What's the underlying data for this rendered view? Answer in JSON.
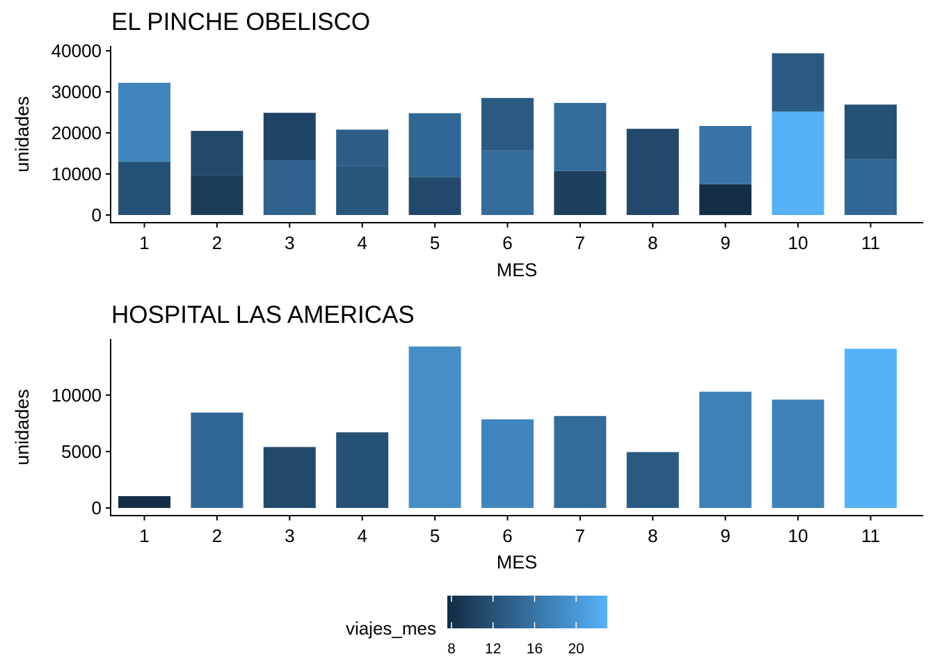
{
  "chart_data": [
    {
      "type": "bar",
      "stacked": true,
      "title": "EL PINCHE OBELISCO",
      "xlabel": "MES",
      "ylabel": "unidades",
      "categories": [
        1,
        2,
        3,
        4,
        5,
        6,
        7,
        8,
        9,
        10,
        11
      ],
      "ylim": [
        0,
        40000
      ],
      "yticks": [
        0,
        10000,
        20000,
        30000,
        40000
      ],
      "grid": false,
      "segments": [
        [
          {
            "value": 13000,
            "viajes_mes": 12
          },
          {
            "value": 19200,
            "viajes_mes": 18
          }
        ],
        [
          {
            "value": 9700,
            "viajes_mes": 9.5
          },
          {
            "value": 10800,
            "viajes_mes": 11
          }
        ],
        [
          {
            "value": 13400,
            "viajes_mes": 14
          },
          {
            "value": 11500,
            "viajes_mes": 10.5
          }
        ],
        [
          {
            "value": 12000,
            "viajes_mes": 12.5
          },
          {
            "value": 8800,
            "viajes_mes": 13.5
          }
        ],
        [
          {
            "value": 9200,
            "viajes_mes": 11
          },
          {
            "value": 15600,
            "viajes_mes": 14.5
          }
        ],
        [
          {
            "value": 15700,
            "viajes_mes": 15
          },
          {
            "value": 12800,
            "viajes_mes": 13
          }
        ],
        [
          {
            "value": 10700,
            "viajes_mes": 10
          },
          {
            "value": 16600,
            "viajes_mes": 15
          }
        ],
        [
          {
            "value": 21000,
            "viajes_mes": 11
          }
        ],
        [
          {
            "value": 7500,
            "viajes_mes": 8
          },
          {
            "value": 14200,
            "viajes_mes": 16
          }
        ],
        [
          {
            "value": 25200,
            "viajes_mes": 23
          },
          {
            "value": 14200,
            "viajes_mes": 13
          }
        ],
        [
          {
            "value": 13600,
            "viajes_mes": 14.5
          },
          {
            "value": 13300,
            "viajes_mes": 12
          }
        ]
      ]
    },
    {
      "type": "bar",
      "stacked": true,
      "title": "HOSPITAL LAS AMERICAS",
      "xlabel": "MES",
      "ylabel": "unidades",
      "categories": [
        1,
        2,
        3,
        4,
        5,
        6,
        7,
        8,
        9,
        10,
        11
      ],
      "ylim": [
        0,
        14300
      ],
      "yticks": [
        0,
        5000,
        10000
      ],
      "grid": false,
      "segments": [
        [
          {
            "value": 1050,
            "viajes_mes": 8
          }
        ],
        [
          {
            "value": 8450,
            "viajes_mes": 14.5
          }
        ],
        [
          {
            "value": 5400,
            "viajes_mes": 11
          }
        ],
        [
          {
            "value": 6700,
            "viajes_mes": 12
          }
        ],
        [
          {
            "value": 14300,
            "viajes_mes": 19
          }
        ],
        [
          {
            "value": 7850,
            "viajes_mes": 18
          }
        ],
        [
          {
            "value": 8150,
            "viajes_mes": 15
          }
        ],
        [
          {
            "value": 4950,
            "viajes_mes": 13
          }
        ],
        [
          {
            "value": 10300,
            "viajes_mes": 17.5
          }
        ],
        [
          {
            "value": 9600,
            "viajes_mes": 17.5
          }
        ],
        [
          {
            "value": 14100,
            "viajes_mes": 23
          }
        ]
      ]
    }
  ],
  "legend": {
    "title": "viajes_mes",
    "range": [
      7.6,
      23
    ],
    "ticks": [
      8,
      12,
      16,
      20
    ],
    "color_low": "#132B43",
    "color_high": "#56B1F7",
    "placement": "bottom"
  }
}
